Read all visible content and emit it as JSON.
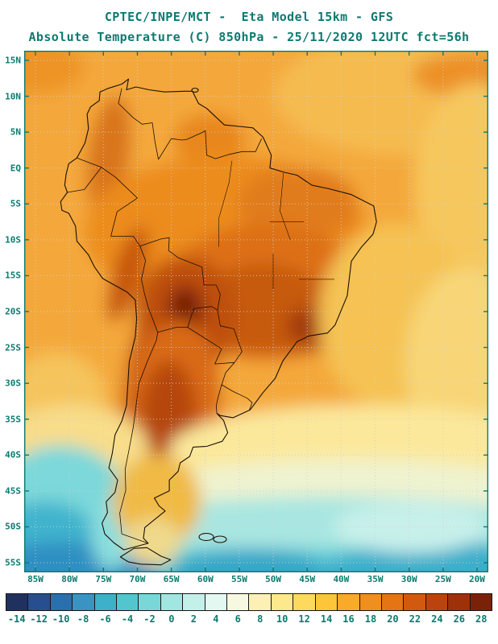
{
  "header": {
    "line1": "CPTEC/INPE/MCT -  Eta Model 15km - GFS",
    "line2": "Absolute Temperature (C) 850hPa - 25/11/2020 12UTC fct=56h"
  },
  "map": {
    "lat_labels": [
      "15N",
      "10N",
      "5N",
      "EQ",
      "5S",
      "10S",
      "15S",
      "20S",
      "25S",
      "30S",
      "35S",
      "40S",
      "45S",
      "50S",
      "55S"
    ],
    "lon_labels": [
      "85W",
      "80W",
      "75W",
      "70W",
      "65W",
      "60W",
      "55W",
      "50W",
      "45W",
      "40W",
      "35W",
      "30W",
      "25W",
      "20W"
    ]
  },
  "colorbar": {
    "tick_labels": [
      "-14",
      "-12",
      "-10",
      "-8",
      "-6",
      "-4",
      "-2",
      "0",
      "2",
      "4",
      "6",
      "8",
      "10",
      "12",
      "14",
      "16",
      "18",
      "20",
      "22",
      "24",
      "26",
      "28"
    ],
    "colors": [
      "#20315F",
      "#274E8E",
      "#2A6FAE",
      "#3A93C2",
      "#3FB0C9",
      "#52C5CF",
      "#79D7D8",
      "#A0E6E1",
      "#C4F0EA",
      "#E4F8F2",
      "#F6F8E0",
      "#FCF0B4",
      "#FDE88C",
      "#FDD95E",
      "#FCC53A",
      "#F7AB28",
      "#EF8F1D",
      "#E37514",
      "#D15A10",
      "#BC430E",
      "#9C310A",
      "#7A2207"
    ]
  },
  "colors": {
    "title_text": "#0E7A70",
    "frame": "#0E7A70",
    "coastline": "#1C1005",
    "grid": "#CFCFCF"
  },
  "chart_data": {
    "type": "heatmap",
    "title": "Absolute Temperature (C) 850hPa - 25/11/2020 12UTC fct=56h",
    "source_label": "CPTEC/INPE/MCT - Eta Model 15km - GFS",
    "units": "C",
    "level_hpa": 850,
    "valid": "25/11/2020 12UTC",
    "forecast_hour": 56,
    "lon_ticks": [
      "85W",
      "80W",
      "75W",
      "70W",
      "65W",
      "60W",
      "55W",
      "50W",
      "45W",
      "40W",
      "35W",
      "30W",
      "25W",
      "20W"
    ],
    "lat_ticks": [
      "15N",
      "10N",
      "5N",
      "EQ",
      "5S",
      "10S",
      "15S",
      "20S",
      "25S",
      "30S",
      "35S",
      "40S",
      "45S",
      "50S",
      "55S"
    ],
    "colorbar_values": [
      -14,
      -12,
      -10,
      -8,
      -6,
      -4,
      -2,
      0,
      2,
      4,
      6,
      8,
      10,
      12,
      14,
      16,
      18,
      20,
      22,
      24,
      26,
      28
    ],
    "legend_position": "bottom",
    "field_notes": "18-22C over most of tropical South America and adjacent oceans; hottest cores 24-28C over Bolivia, central Brazil and northern Argentina along the Andes; 10-16C yellow band over the subtropical Atlantic; cool air 0-8C (cyan/teal) south of 40S with coldest blue patches in the far southwest and far south."
  }
}
